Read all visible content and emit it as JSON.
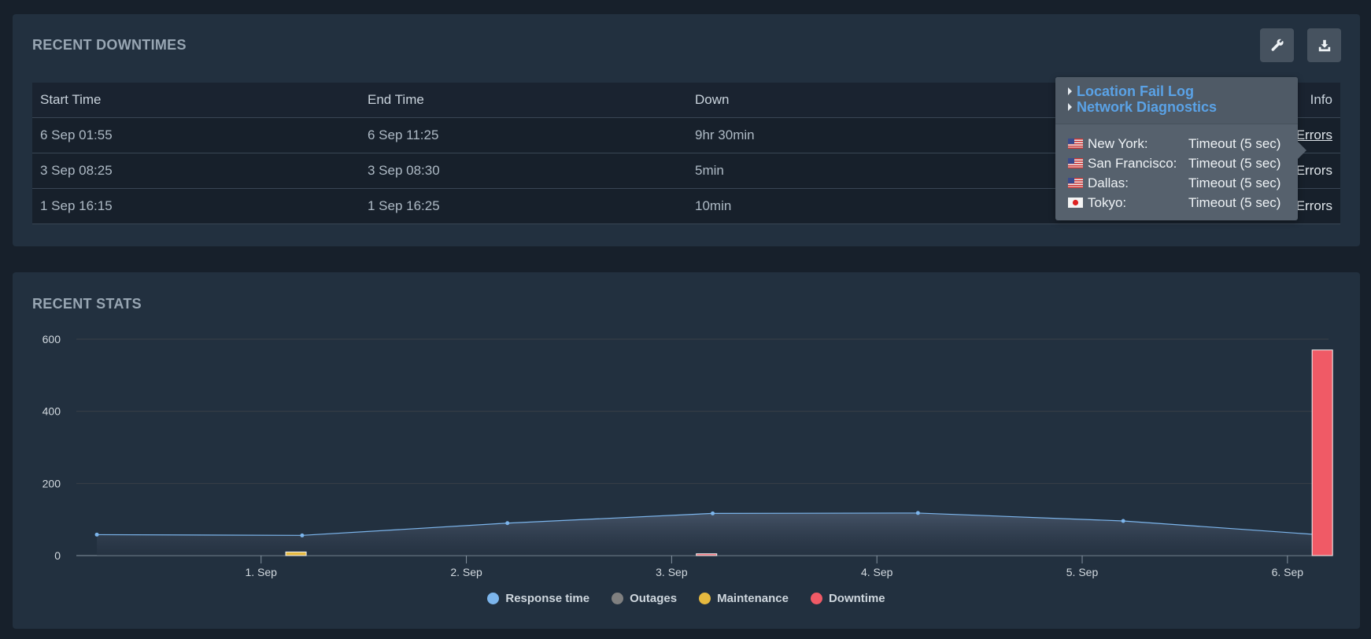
{
  "downtimes": {
    "title": "RECENT DOWNTIMES",
    "columns": [
      "Start Time",
      "End Time",
      "Down",
      "Info"
    ],
    "rows": [
      {
        "start": "6 Sep 01:55",
        "end": "6 Sep 11:25",
        "down": "9hr 30min",
        "info": "Errors"
      },
      {
        "start": "3 Sep 08:25",
        "end": "3 Sep 08:30",
        "down": "5min",
        "info": "Errors"
      },
      {
        "start": "1 Sep 16:15",
        "end": "1 Sep 16:25",
        "down": "10min",
        "info": "Errors"
      }
    ],
    "toolbar": {
      "settings_icon": "wrench-icon",
      "export_icon": "download-icon"
    }
  },
  "popover": {
    "links": [
      "Location Fail Log",
      "Network Diagnostics"
    ],
    "locations": [
      {
        "flag": "us-flag-icon",
        "name": "New York:",
        "status": "Timeout (5 sec)"
      },
      {
        "flag": "us-flag-icon",
        "name": "San Francisco:",
        "status": "Timeout (5 sec)"
      },
      {
        "flag": "us-flag-icon",
        "name": "Dallas:",
        "status": "Timeout (5 sec)"
      },
      {
        "flag": "jp-flag-icon",
        "name": "Tokyo:",
        "status": "Timeout (5 sec)"
      }
    ]
  },
  "stats": {
    "title": "RECENT STATS"
  },
  "chart_data": {
    "type": "line",
    "title": "",
    "xlabel": "",
    "ylabel": "",
    "ylim": [
      0,
      600
    ],
    "y_ticks": [
      0,
      200,
      400,
      600
    ],
    "x_tick_labels": [
      "1. Sep",
      "2. Sep",
      "3. Sep",
      "4. Sep",
      "5. Sep",
      "6. Sep"
    ],
    "xlim": [
      0.1,
      6.2
    ],
    "grid": true,
    "legend_position": "bottom",
    "series": [
      {
        "name": "Response time",
        "type": "area",
        "color": "#7cb5ec",
        "x": [
          0.2,
          1.2,
          2.2,
          3.2,
          4.2,
          5.2,
          6.2
        ],
        "y": [
          58,
          56,
          90,
          117,
          118,
          96,
          56
        ]
      },
      {
        "name": "Outages",
        "type": "bar",
        "color": "#808080",
        "x": [],
        "y": []
      },
      {
        "name": "Maintenance",
        "type": "bar",
        "color": "#e6b93f",
        "x": [
          1.17
        ],
        "y": [
          10
        ]
      },
      {
        "name": "Downtime",
        "type": "bar",
        "color": "#f05a66",
        "x": [
          3.17,
          6.17
        ],
        "y": [
          5,
          570
        ]
      }
    ]
  }
}
